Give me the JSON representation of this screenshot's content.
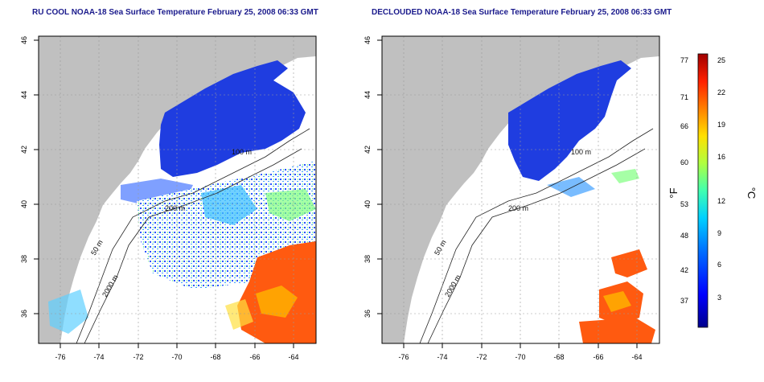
{
  "panels": [
    {
      "title": "RU COOL NOAA-18 Sea Surface Temperature February 25, 2008 06:33 GMT",
      "contour_labels": [
        "100 m",
        "200 m",
        "50 m",
        "2000 m"
      ]
    },
    {
      "title": "DECLOUDED NOAA-18 Sea Surface Temperature February 25, 2008 06:33 GMT",
      "contour_labels": [
        "100 m",
        "200 m",
        "50 m",
        "2000 m"
      ]
    }
  ],
  "axes": {
    "lat_ticks": [
      "36",
      "38",
      "40",
      "42",
      "44",
      "46"
    ],
    "lon_ticks": [
      "-76",
      "-74",
      "-72",
      "-70",
      "-68",
      "-66",
      "-64"
    ]
  },
  "colorbar": {
    "label_f": "°F",
    "label_c": "°C",
    "f_ticks": [
      "77",
      "71",
      "66",
      "60",
      "53",
      "48",
      "42",
      "37"
    ],
    "c_ticks": [
      "25",
      "22",
      "19",
      "16",
      "12",
      "9",
      "6",
      "3"
    ],
    "colors": [
      "#00008b",
      "#0000ff",
      "#0070ff",
      "#00d0ff",
      "#40ffb0",
      "#b0ff40",
      "#ffe000",
      "#ff8000",
      "#ff2000",
      "#a00000"
    ]
  },
  "colors": {
    "land": "#c0c0c0",
    "cold_water": "#1f3de0",
    "warm_water": "#ff5a10",
    "title_color": "#1a1a8c"
  }
}
